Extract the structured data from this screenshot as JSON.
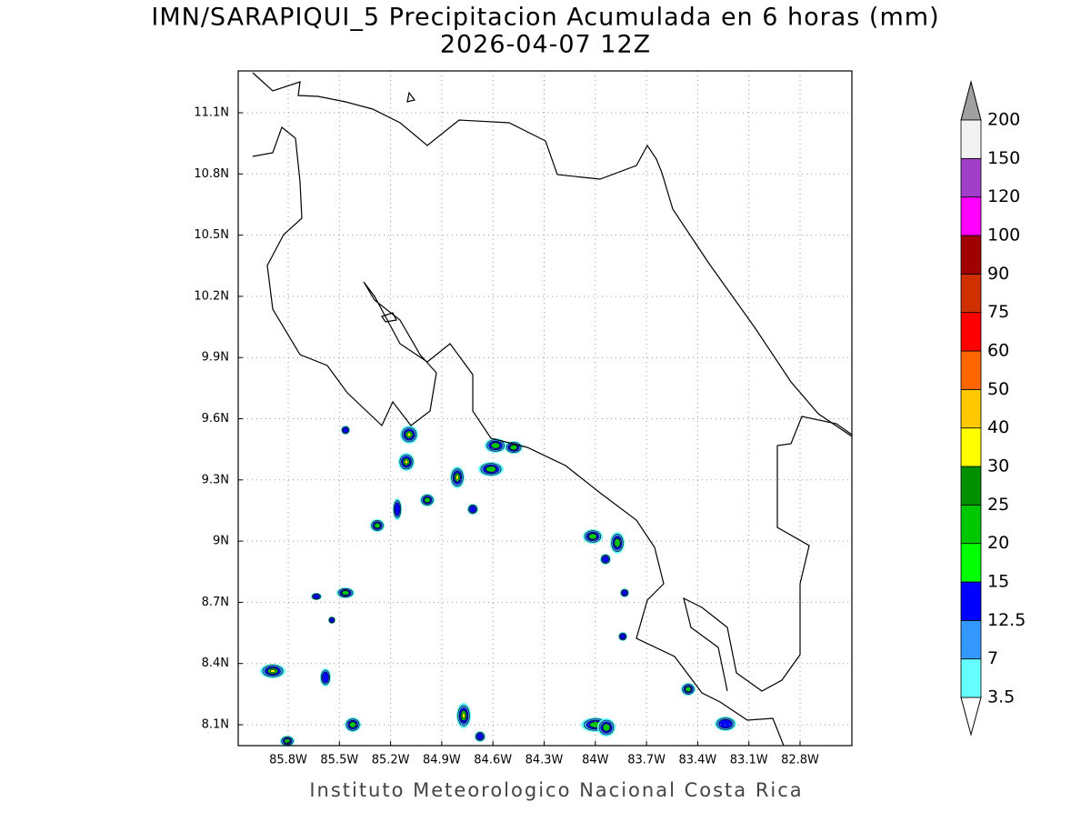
{
  "header": {
    "title": "IMN/SARAPIQUI_5 Precipitacion Acumulada en 6 horas (mm)",
    "subtitle": "2026-04-07 12Z"
  },
  "map": {
    "lon_labels": [
      "85.8W",
      "85.5W",
      "85.2W",
      "84.9W",
      "84.6W",
      "84.3W",
      "84W",
      "83.7W",
      "83.4W",
      "83.1W",
      "82.8W"
    ],
    "lat_labels": [
      "11.1N",
      "10.8N",
      "10.5N",
      "10.2N",
      "9.9N",
      "9.6N",
      "9.3N",
      "9N",
      "8.7N",
      "8.4N",
      "8.1N"
    ]
  },
  "colorbar": {
    "labels": [
      "3.5",
      "7",
      "12.5",
      "15",
      "20",
      "25",
      "30",
      "40",
      "50",
      "60",
      "75",
      "90",
      "100",
      "120",
      "150",
      "200"
    ],
    "colors": [
      "#66ffff",
      "#3399ff",
      "#0000ff",
      "#00ff00",
      "#00c800",
      "#009000",
      "#ffff00",
      "#ffc800",
      "#ff6600",
      "#ff0000",
      "#d03000",
      "#a00000",
      "#ff00ff",
      "#a040c8",
      "#f2f2f2"
    ]
  },
  "footer": "Instituto Meteorologico Nacional Costa Rica"
}
